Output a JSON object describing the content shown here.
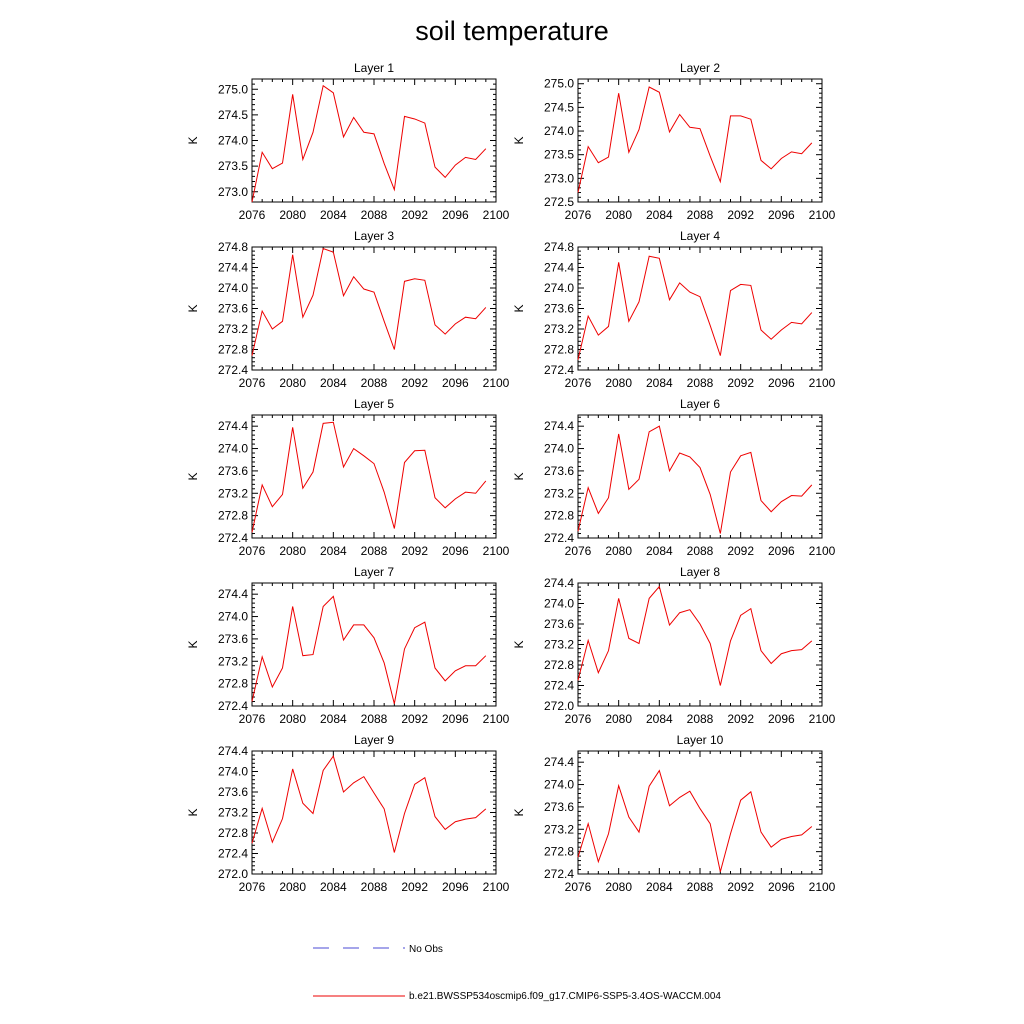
{
  "chart_data": {
    "type": "line",
    "title": "soil temperature",
    "x": [
      2076,
      2077,
      2078,
      2079,
      2080,
      2081,
      2082,
      2083,
      2084,
      2085,
      2086,
      2087,
      2088,
      2089,
      2090,
      2091,
      2092,
      2093,
      2094,
      2095,
      2096,
      2097,
      2098,
      2099
    ],
    "xticks": [
      "2076",
      "2080",
      "2084",
      "2088",
      "2092",
      "2096",
      "2100"
    ],
    "xlim": [
      2076,
      2100
    ],
    "legend": [
      {
        "label": "No Obs",
        "color": "#4b4bd6",
        "style": "dashed"
      },
      {
        "label": "b.e21.BWSSP534oscmip6.f09_g17.CMIP6-SSP5-3.4OS-WACCM.004",
        "color": "#ee0000",
        "style": "solid"
      }
    ],
    "panels": [
      {
        "title": "Layer 1",
        "ylabel": "K",
        "ylim": [
          272.8,
          275.2
        ],
        "yticks": [
          "273.0",
          "273.5",
          "274.0",
          "274.5",
          "275.0"
        ],
        "values": [
          272.8,
          273.77,
          273.45,
          273.56,
          274.9,
          273.63,
          274.16,
          275.07,
          274.93,
          274.07,
          274.45,
          274.16,
          274.13,
          273.55,
          273.04,
          274.47,
          274.42,
          274.34,
          273.48,
          273.28,
          273.52,
          273.67,
          273.63,
          273.84
        ]
      },
      {
        "title": "Layer 2",
        "ylabel": "K",
        "ylim": [
          272.5,
          275.1
        ],
        "yticks": [
          "272.5",
          "273.0",
          "273.5",
          "274.0",
          "274.5",
          "275.0"
        ],
        "values": [
          272.7,
          273.67,
          273.33,
          273.45,
          274.8,
          273.55,
          274.03,
          274.93,
          274.82,
          273.98,
          274.35,
          274.08,
          274.05,
          273.47,
          272.93,
          274.32,
          274.32,
          274.25,
          273.38,
          273.2,
          273.42,
          273.56,
          273.52,
          273.75
        ]
      },
      {
        "title": "Layer 3",
        "ylabel": "K",
        "ylim": [
          272.4,
          274.8
        ],
        "yticks": [
          "272.4",
          "272.8",
          "273.2",
          "273.6",
          "274.0",
          "274.4",
          "274.8"
        ],
        "values": [
          272.68,
          273.55,
          273.2,
          273.35,
          274.65,
          273.43,
          273.86,
          274.77,
          274.7,
          273.85,
          274.22,
          273.98,
          273.92,
          273.35,
          272.8,
          274.13,
          274.18,
          274.15,
          273.28,
          273.1,
          273.3,
          273.43,
          273.4,
          273.62
        ]
      },
      {
        "title": "Layer 4",
        "ylabel": "K",
        "ylim": [
          272.4,
          274.8
        ],
        "yticks": [
          "272.4",
          "272.8",
          "273.2",
          "273.6",
          "274.0",
          "274.4",
          "274.8"
        ],
        "values": [
          272.6,
          273.45,
          273.08,
          273.25,
          274.5,
          273.35,
          273.73,
          274.62,
          274.58,
          273.77,
          274.1,
          273.92,
          273.83,
          273.27,
          272.68,
          273.95,
          274.07,
          274.05,
          273.18,
          273.0,
          273.18,
          273.33,
          273.3,
          273.52
        ]
      },
      {
        "title": "Layer 5",
        "ylabel": "K",
        "ylim": [
          272.4,
          274.6
        ],
        "yticks": [
          "272.4",
          "272.8",
          "273.2",
          "273.6",
          "274.0",
          "274.4"
        ],
        "values": [
          272.5,
          273.35,
          272.96,
          273.18,
          274.38,
          273.29,
          273.58,
          274.45,
          274.47,
          273.67,
          274.0,
          273.87,
          273.73,
          273.22,
          272.57,
          273.75,
          273.96,
          273.97,
          273.12,
          272.94,
          273.1,
          273.22,
          273.2,
          273.42
        ]
      },
      {
        "title": "Layer 6",
        "ylabel": "K",
        "ylim": [
          272.4,
          274.6
        ],
        "yticks": [
          "272.4",
          "272.8",
          "273.2",
          "273.6",
          "274.0",
          "274.4"
        ],
        "values": [
          272.52,
          273.3,
          272.84,
          273.12,
          274.26,
          273.27,
          273.45,
          274.3,
          274.4,
          273.6,
          273.92,
          273.85,
          273.66,
          273.18,
          272.48,
          273.58,
          273.87,
          273.93,
          273.07,
          272.87,
          273.05,
          273.16,
          273.15,
          273.35
        ]
      },
      {
        "title": "Layer 7",
        "ylabel": "K",
        "ylim": [
          272.4,
          274.6
        ],
        "yticks": [
          "272.4",
          "272.8",
          "273.2",
          "273.6",
          "274.0",
          "274.4"
        ],
        "values": [
          272.48,
          273.28,
          272.74,
          273.08,
          274.18,
          273.3,
          273.32,
          274.18,
          274.36,
          273.58,
          273.85,
          273.85,
          273.62,
          273.17,
          272.44,
          273.42,
          273.8,
          273.9,
          273.08,
          272.85,
          273.03,
          273.12,
          273.12,
          273.3
        ]
      },
      {
        "title": "Layer 8",
        "ylabel": "K",
        "ylim": [
          272.0,
          274.4
        ],
        "yticks": [
          "272.0",
          "272.4",
          "272.8",
          "273.2",
          "273.6",
          "274.0",
          "274.4"
        ],
        "values": [
          272.5,
          273.28,
          272.65,
          273.08,
          274.1,
          273.32,
          273.22,
          274.1,
          274.33,
          273.58,
          273.82,
          273.88,
          273.6,
          273.22,
          272.4,
          273.27,
          273.77,
          273.9,
          273.08,
          272.83,
          273.02,
          273.08,
          273.1,
          273.27
        ]
      },
      {
        "title": "Layer 9",
        "ylabel": "K",
        "ylim": [
          272.0,
          274.4
        ],
        "yticks": [
          "272.0",
          "272.4",
          "272.8",
          "273.2",
          "273.6",
          "274.0",
          "274.4"
        ],
        "values": [
          272.6,
          273.28,
          272.62,
          273.08,
          274.05,
          273.38,
          273.18,
          274.02,
          274.3,
          273.6,
          273.78,
          273.9,
          273.58,
          273.27,
          272.42,
          273.18,
          273.75,
          273.88,
          273.12,
          272.87,
          273.02,
          273.07,
          273.1,
          273.27
        ]
      },
      {
        "title": "Layer 10",
        "ylabel": "K",
        "ylim": [
          272.4,
          274.6
        ],
        "yticks": [
          "272.4",
          "272.8",
          "273.2",
          "273.6",
          "274.0",
          "274.4"
        ],
        "values": [
          272.7,
          273.3,
          272.62,
          273.12,
          273.98,
          273.42,
          273.15,
          273.97,
          274.25,
          273.62,
          273.77,
          273.88,
          273.57,
          273.3,
          272.44,
          273.12,
          273.72,
          273.87,
          273.15,
          272.88,
          273.02,
          273.07,
          273.1,
          273.25
        ]
      }
    ]
  }
}
